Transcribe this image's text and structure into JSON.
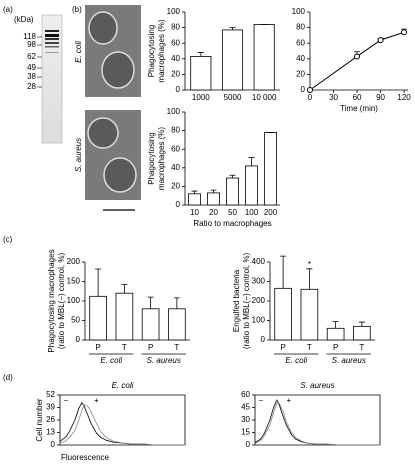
{
  "panel_labels": [
    "(a)",
    "(b)",
    "(c)",
    "(d)"
  ],
  "gel": {
    "unit": "(kDa)",
    "markers": [
      118,
      98,
      62,
      49,
      38,
      28
    ]
  },
  "micrographs": [
    "E. coli",
    "S. aureus"
  ],
  "chart_data": [
    {
      "type": "bar",
      "ylabel": [
        "Phagocytosing",
        "macrophages (%)"
      ],
      "categories": [
        "1000",
        "5000",
        "10 000"
      ],
      "values": [
        43,
        77,
        84
      ],
      "errors": [
        5,
        3,
        0
      ],
      "color": "#ffffff",
      "ylim": [
        0,
        100
      ],
      "yticks": [
        0,
        20,
        40,
        60,
        80,
        100
      ]
    },
    {
      "type": "line",
      "xlabel": "Time (min)",
      "x": [
        0,
        60,
        90,
        120
      ],
      "values": [
        0,
        43,
        64,
        74
      ],
      "errors": [
        0,
        6,
        2,
        4
      ],
      "color": "#000000",
      "xlim": [
        0,
        125
      ],
      "xticks": [
        0,
        30,
        60,
        90,
        120
      ],
      "ylim": [
        0,
        100
      ],
      "yticks": [
        0,
        20,
        40,
        60,
        80,
        100
      ]
    },
    {
      "type": "bar",
      "xlabel": "Ratio to macrophages",
      "ylabel": [
        "Phagocytosing",
        "macrophages (%)"
      ],
      "categories": [
        "10",
        "20",
        "50",
        "100",
        "200"
      ],
      "values": [
        12,
        13,
        29,
        42,
        78
      ],
      "errors": [
        3,
        3,
        3,
        9,
        0
      ],
      "color": "#ffffff",
      "ylim": [
        0,
        100
      ],
      "yticks": [
        0,
        20,
        40,
        60,
        80,
        100
      ]
    },
    {
      "type": "bar",
      "ylabel": [
        "Phagocytosing macrophages",
        "(ratio to MBL(−) control, %)"
      ],
      "categories": [
        "P",
        "T",
        "P",
        "T"
      ],
      "groups": [
        "E. coli",
        "S. aureus"
      ],
      "values": [
        112,
        120,
        80,
        80
      ],
      "errors": [
        70,
        22,
        30,
        28
      ],
      "color": "#ffffff",
      "ylim": [
        0,
        200
      ],
      "yticks": [
        0,
        50,
        100,
        150,
        200
      ]
    },
    {
      "type": "bar",
      "ylabel": [
        "Engulfed bacteria",
        "(ratio to MBL(−) control, %)"
      ],
      "categories": [
        "P",
        "T",
        "P",
        "T"
      ],
      "groups": [
        "E. coli",
        "S. aureus"
      ],
      "values": [
        265,
        260,
        60,
        70
      ],
      "errors": [
        165,
        105,
        35,
        22
      ],
      "annotation": "*",
      "color": "#ffffff",
      "ylim": [
        0,
        400
      ],
      "yticks": [
        0,
        100,
        200,
        300,
        400
      ]
    },
    {
      "type": "hist",
      "title": "E. coli",
      "ylabel": "Cell number",
      "xlabel": "Fluorescence",
      "log_x": true,
      "xlim": [
        1,
        10000
      ],
      "ylim": [
        0,
        52
      ],
      "yticks": [
        0,
        13,
        26,
        39,
        52
      ],
      "x": [
        1,
        1.5,
        2,
        3,
        4,
        5,
        6,
        8,
        10,
        15,
        20,
        30,
        50,
        100,
        200,
        500,
        1000,
        10000
      ],
      "series": [
        {
          "name": "−",
          "color": "#000000",
          "values": [
            4,
            8,
            14,
            26,
            38,
            44,
            40,
            30,
            22,
            12,
            8,
            5,
            3,
            2,
            1,
            1,
            0,
            0
          ]
        },
        {
          "name": "+",
          "color": "#888888",
          "values": [
            2,
            4,
            8,
            15,
            26,
            36,
            42,
            40,
            34,
            22,
            14,
            8,
            4,
            2,
            1,
            1,
            0,
            0
          ]
        }
      ]
    },
    {
      "type": "hist",
      "title": "S. aureus",
      "log_x": true,
      "xlim": [
        1,
        10000
      ],
      "ylim": [
        0,
        60
      ],
      "yticks": [
        0,
        15,
        30,
        45,
        60
      ],
      "x": [
        1,
        1.5,
        2,
        3,
        4,
        5,
        6,
        8,
        10,
        15,
        20,
        30,
        50,
        100,
        200,
        500,
        1000,
        10000
      ],
      "series": [
        {
          "name": "−",
          "color": "#000000",
          "values": [
            3,
            7,
            14,
            30,
            46,
            54,
            48,
            34,
            24,
            12,
            7,
            4,
            2,
            1,
            1,
            0,
            0,
            0
          ]
        },
        {
          "name": "+",
          "color": "#888888",
          "values": [
            2,
            5,
            11,
            24,
            40,
            50,
            50,
            40,
            28,
            15,
            9,
            5,
            2,
            1,
            1,
            0,
            0,
            0
          ]
        }
      ]
    }
  ]
}
